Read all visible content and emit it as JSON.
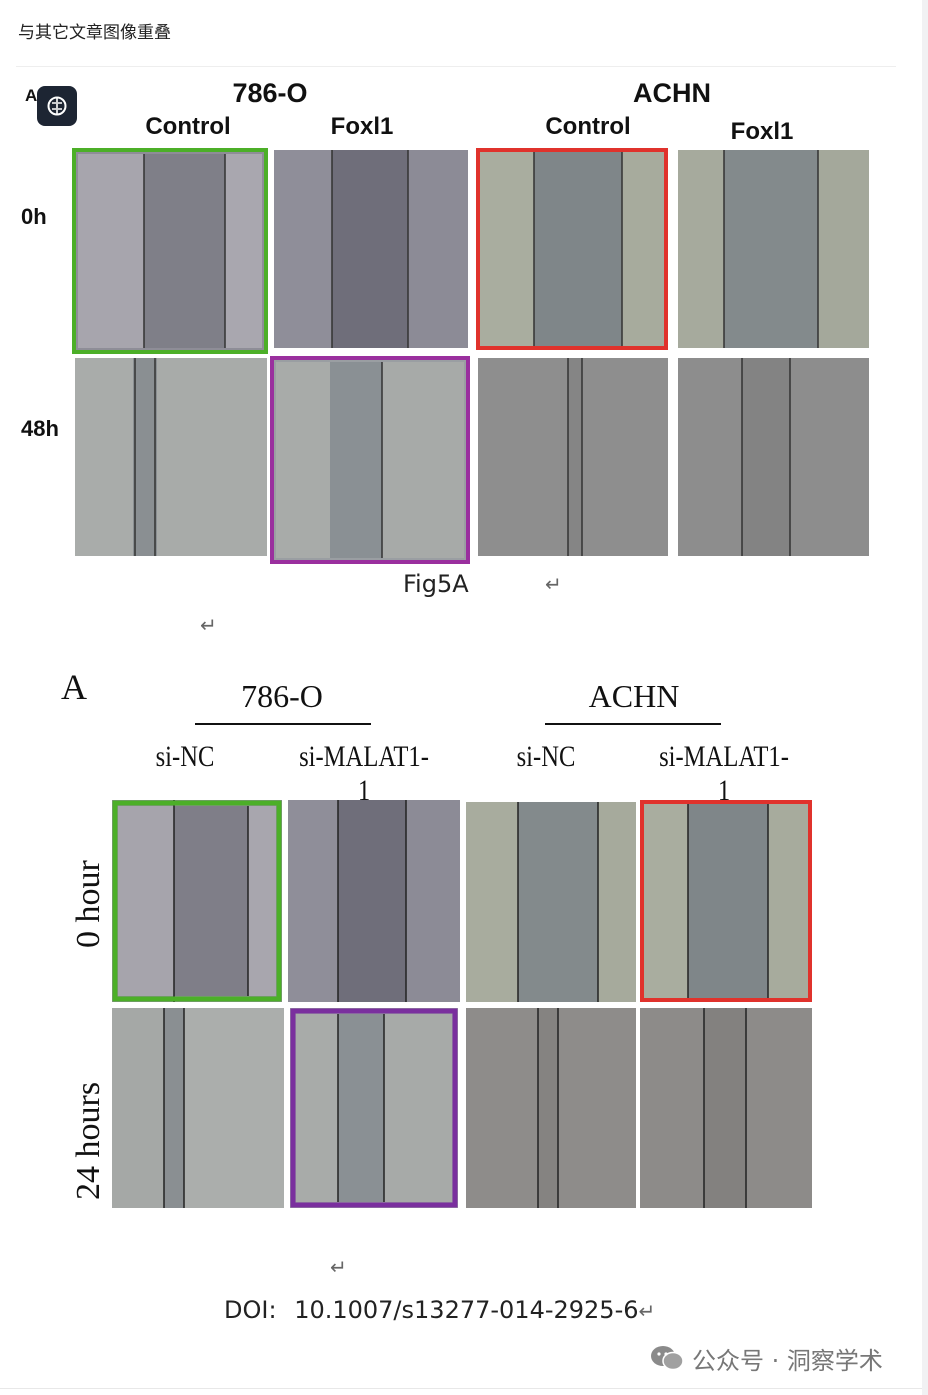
{
  "header": {
    "title": "与其它文章图像重叠"
  },
  "figure1": {
    "panel_letter": "A",
    "groups": [
      "786-O",
      "ACHN"
    ],
    "columns": [
      "Control",
      "Foxl1",
      "Control",
      "Foxl1"
    ],
    "rows": [
      "0h",
      "48h"
    ],
    "caption": "Fig5A",
    "highlight_colors": {
      "green": "#4caf28",
      "purple": "#9a2f9e",
      "red": "#e0322c"
    }
  },
  "figure2": {
    "panel_letter": "A",
    "groups": [
      "786-O",
      "ACHN"
    ],
    "columns": [
      "si-NC",
      "si-MALAT1-1",
      "si-NC",
      "si-MALAT1-1"
    ],
    "rows": [
      "0 hour",
      "24 hours"
    ],
    "highlight_colors": {
      "green": "#4caf28",
      "purple": "#7a2f9e",
      "red": "#e0322c"
    }
  },
  "return_mark": "↵",
  "doi": {
    "label": "DOI:",
    "value": "10.1007/s13277-014-2925-6"
  },
  "watermark": {
    "text": "公众号 · 洞察学术",
    "icon": "wechat-icon"
  }
}
